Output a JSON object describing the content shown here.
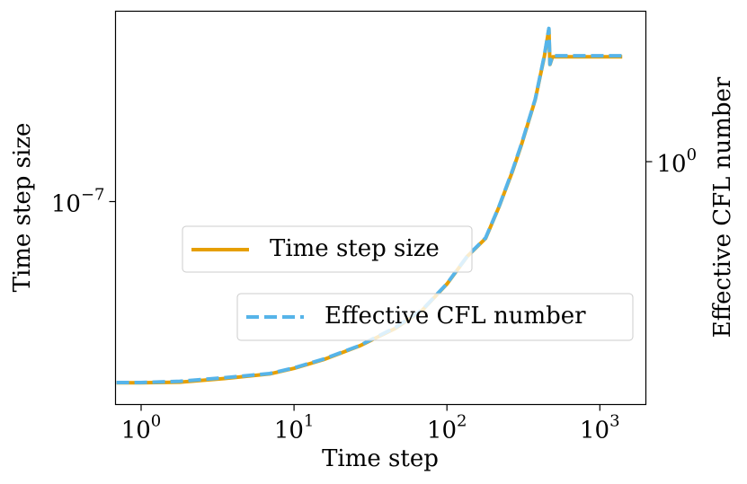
{
  "chart_data": {
    "type": "line",
    "xlabel": "Time step",
    "ylabel": "Time step size",
    "y2label": "Effective CFL number",
    "x": [
      0.69,
      1,
      1.79,
      3.52,
      6.93,
      10,
      15.6,
      26.8,
      46,
      69,
      100,
      136,
      179,
      219,
      268,
      307,
      378,
      433,
      464,
      472,
      491,
      690,
      1400
    ],
    "series": [
      {
        "name": "Time step size",
        "color": "#E69F00",
        "dash": false,
        "values": [
          5.04e-08,
          5.04e-08,
          5.05e-08,
          5.12e-08,
          5.21e-08,
          5.32e-08,
          5.5e-08,
          5.79e-08,
          6.19e-08,
          6.63e-08,
          7.32e-08,
          8.13e-08,
          8.7e-08,
          9.8e-08,
          1.12e-07,
          1.24e-07,
          1.47e-07,
          1.73e-07,
          1.92e-07,
          1.68e-07,
          1.73e-07,
          1.73e-07,
          1.73e-07
        ]
      },
      {
        "name": "Effective CFL number",
        "color": "#56B4E9",
        "dash": true,
        "axis": "y2",
        "values": [
          0.304,
          0.304,
          0.306,
          0.312,
          0.319,
          0.329,
          0.345,
          0.371,
          0.409,
          0.45,
          0.518,
          0.601,
          0.663,
          0.785,
          0.953,
          1.1,
          1.4,
          1.77,
          2.05,
          1.69,
          1.77,
          1.77,
          1.77
        ]
      }
    ],
    "xscale": "log",
    "yscale": "log",
    "y2scale": "log",
    "xlim": [
      0.68,
      2000
    ],
    "ylim": [
      4.64e-08,
      2.055e-07
    ],
    "y2lim": [
      0.27,
      2.25
    ],
    "xticks": [
      {
        "value": 1,
        "label": "10^0"
      },
      {
        "value": 10,
        "label": "10^1"
      },
      {
        "value": 100,
        "label": "10^2"
      },
      {
        "value": 1000,
        "label": "10^3"
      }
    ],
    "yticks": [
      {
        "value": 1e-07,
        "label": "10^−7"
      }
    ],
    "y2ticks": [
      {
        "value": 1,
        "label": "10^0"
      }
    ]
  }
}
